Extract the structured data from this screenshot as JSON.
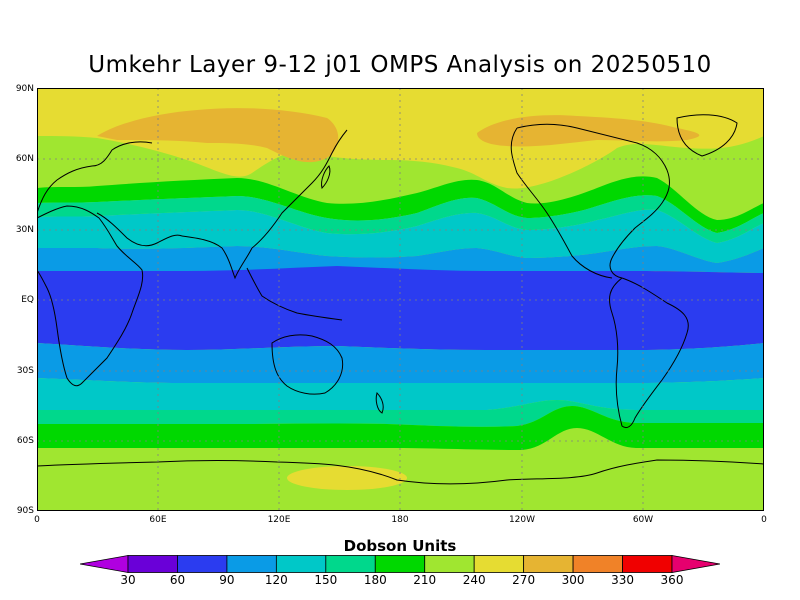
{
  "title": "Umkehr Layer 9-12 j01 OMPS Analysis on 20250510",
  "lat_labels": [
    "90N",
    "60N",
    "30N",
    "EQ",
    "30S",
    "60S",
    "90S"
  ],
  "lon_labels": [
    "0",
    "60E",
    "120E",
    "180",
    "120W",
    "60W",
    "0"
  ],
  "colorbar": {
    "title": "Dobson Units",
    "tick_labels": [
      "30",
      "60",
      "90",
      "120",
      "150",
      "180",
      "210",
      "240",
      "270",
      "300",
      "330",
      "360"
    ],
    "colors": [
      "#b000e0",
      "#6a00d8",
      "#2b3cf0",
      "#0a9be6",
      "#00c8c8",
      "#00d88c",
      "#00d800",
      "#a0e630",
      "#e6dc32",
      "#e6b432",
      "#f08228",
      "#f00000",
      "#e6006e"
    ]
  },
  "band_colors": {
    "d210_240": "#a0e630",
    "d240_270": "#e6dc32",
    "d270_300": "#e6b432",
    "d180_210": "#00d800",
    "d150_180": "#00d88c",
    "d120_150": "#00c8c8",
    "d90_120": "#0a9be6",
    "d60_90": "#2b3cf0"
  }
}
